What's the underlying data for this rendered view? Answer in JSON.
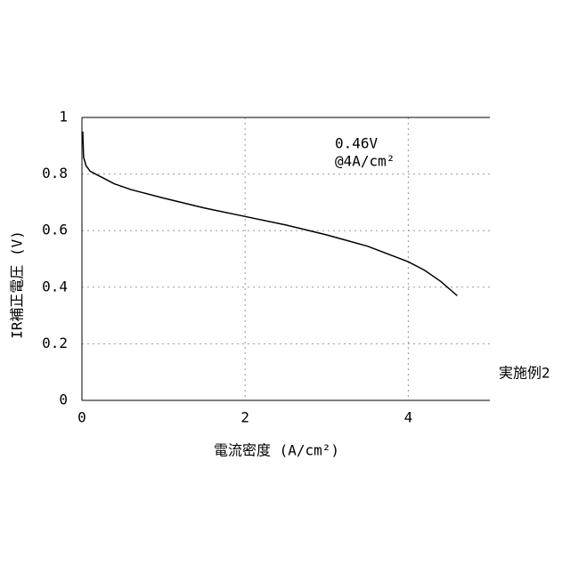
{
  "chart_data": {
    "type": "line",
    "x_label": "電流密度 (A/cm²)",
    "y_label": "IR補正電圧 (V)",
    "annotations": [
      "0.46V",
      "@4A/cm²"
    ],
    "series": [
      {
        "name": "実施例2",
        "color": "#000000",
        "x": [
          0.01,
          0.02,
          0.05,
          0.1,
          0.2,
          0.4,
          0.6,
          1.0,
          1.5,
          2.0,
          2.5,
          3.0,
          3.5,
          4.0,
          4.2,
          4.4,
          4.6
        ],
        "values": [
          0.95,
          0.86,
          0.83,
          0.81,
          0.795,
          0.765,
          0.745,
          0.715,
          0.68,
          0.65,
          0.62,
          0.585,
          0.545,
          0.49,
          0.46,
          0.42,
          0.37
        ]
      }
    ],
    "xlim": [
      0,
      5
    ],
    "xticks": [
      0,
      2,
      4
    ],
    "ylim": [
      0,
      1
    ],
    "yticks": [
      0,
      0.2,
      0.4,
      0.6,
      0.8,
      1
    ],
    "grid": true
  }
}
